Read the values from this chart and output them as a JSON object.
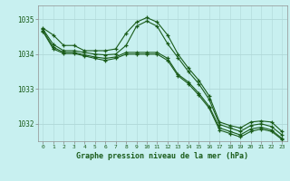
{
  "title": "Graphe pression niveau de la mer (hPa)",
  "bg_color": "#c8f0f0",
  "grid_color": "#b0d8d8",
  "line_color": "#1a5c1a",
  "xlim": [
    -0.5,
    23.5
  ],
  "ylim": [
    1031.5,
    1035.4
  ],
  "yticks": [
    1032,
    1033,
    1034,
    1035
  ],
  "xticks": [
    0,
    1,
    2,
    3,
    4,
    5,
    6,
    7,
    8,
    9,
    10,
    11,
    12,
    13,
    14,
    15,
    16,
    17,
    18,
    19,
    20,
    21,
    22,
    23
  ],
  "series": [
    [
      1034.75,
      1034.55,
      1034.25,
      1034.25,
      1034.1,
      1034.1,
      1034.1,
      1034.15,
      1034.6,
      1034.92,
      1035.05,
      1034.92,
      1034.55,
      1034.0,
      1033.6,
      1033.25,
      1032.8,
      1032.05,
      1031.95,
      1031.88,
      1032.05,
      1032.08,
      1032.05,
      1031.78
    ],
    [
      1034.72,
      1034.28,
      1034.1,
      1034.1,
      1034.05,
      1034.0,
      1033.98,
      1034.0,
      1034.25,
      1034.8,
      1034.95,
      1034.8,
      1034.3,
      1033.9,
      1033.5,
      1033.15,
      1032.7,
      1031.98,
      1031.88,
      1031.78,
      1031.95,
      1032.0,
      1031.92,
      1031.68
    ],
    [
      1034.68,
      1034.2,
      1034.05,
      1034.05,
      1033.98,
      1033.92,
      1033.88,
      1033.92,
      1034.05,
      1034.05,
      1034.05,
      1034.05,
      1033.88,
      1033.42,
      1033.2,
      1032.88,
      1032.5,
      1031.88,
      1031.78,
      1031.68,
      1031.85,
      1031.9,
      1031.82,
      1031.58
    ],
    [
      1034.65,
      1034.15,
      1034.02,
      1034.02,
      1033.95,
      1033.88,
      1033.82,
      1033.88,
      1034.0,
      1034.0,
      1034.0,
      1034.0,
      1033.82,
      1033.38,
      1033.15,
      1032.82,
      1032.45,
      1031.82,
      1031.72,
      1031.62,
      1031.78,
      1031.85,
      1031.78,
      1031.55
    ]
  ]
}
